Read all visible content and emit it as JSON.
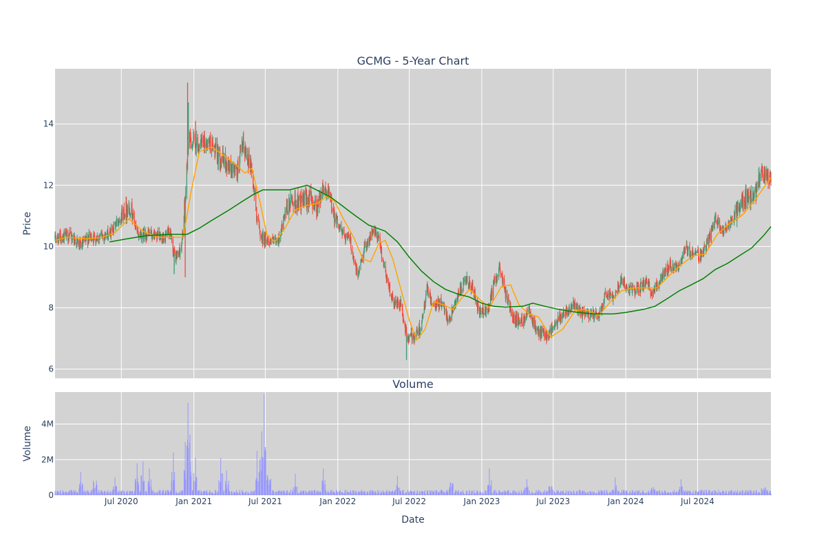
{
  "chart_data": [
    {
      "type": "candlestick",
      "title": "GCMG - 5-Year Chart",
      "xlabel": "",
      "ylabel": "Price",
      "x_range": [
        "2020-01-15",
        "2025-01-03"
      ],
      "ylim": [
        5.7,
        15.8
      ],
      "y_ticks": [
        6,
        8,
        10,
        12,
        14
      ],
      "grid": true,
      "colors": {
        "background": "#d3d3d3",
        "grid": "#ffffff",
        "increasing": "#3d9970",
        "decreasing": "#ff4136",
        "ma_short": "#ffa500",
        "ma_long": "#008000"
      },
      "price_path": [
        [
          "2020-01-15",
          10.25
        ],
        [
          "2020-02-10",
          10.35
        ],
        [
          "2020-03-01",
          10.3
        ],
        [
          "2020-03-20",
          10.0
        ],
        [
          "2020-04-10",
          10.3
        ],
        [
          "2020-05-01",
          10.3
        ],
        [
          "2020-06-01",
          10.4
        ],
        [
          "2020-06-20",
          10.8
        ],
        [
          "2020-07-10",
          11.2
        ],
        [
          "2020-07-25",
          11.3
        ],
        [
          "2020-08-10",
          10.4
        ],
        [
          "2020-09-10",
          10.4
        ],
        [
          "2020-10-10",
          10.3
        ],
        [
          "2020-11-01",
          10.4
        ],
        [
          "2020-11-15",
          9.6
        ],
        [
          "2020-12-01",
          10.0
        ],
        [
          "2020-12-10",
          11.5
        ],
        [
          "2020-12-18",
          13.5
        ],
        [
          "2021-01-10",
          13.3
        ],
        [
          "2021-02-10",
          13.4
        ],
        [
          "2021-03-01",
          13.0
        ],
        [
          "2021-04-01",
          12.6
        ],
        [
          "2021-04-20",
          12.4
        ],
        [
          "2021-05-05",
          13.3
        ],
        [
          "2021-05-25",
          12.7
        ],
        [
          "2021-06-10",
          11.0
        ],
        [
          "2021-06-20",
          10.3
        ],
        [
          "2021-07-10",
          10.2
        ],
        [
          "2021-08-01",
          10.1
        ],
        [
          "2021-08-20",
          11.0
        ],
        [
          "2021-09-05",
          11.5
        ],
        [
          "2021-10-01",
          11.4
        ],
        [
          "2021-10-20",
          11.6
        ],
        [
          "2021-11-10",
          11.3
        ],
        [
          "2021-11-25",
          12.0
        ],
        [
          "2021-12-10",
          11.6
        ],
        [
          "2021-12-25",
          11.0
        ],
        [
          "2022-01-10",
          10.5
        ],
        [
          "2022-02-01",
          10.2
        ],
        [
          "2022-02-20",
          9.0
        ],
        [
          "2022-03-10",
          10.0
        ],
        [
          "2022-04-01",
          10.5
        ],
        [
          "2022-04-15",
          10.2
        ],
        [
          "2022-05-01",
          9.2
        ],
        [
          "2022-05-20",
          8.2
        ],
        [
          "2022-06-10",
          8.1
        ],
        [
          "2022-06-25",
          7.0
        ],
        [
          "2022-07-15",
          7.1
        ],
        [
          "2022-08-01",
          7.4
        ],
        [
          "2022-08-15",
          8.6
        ],
        [
          "2022-09-01",
          8.0
        ],
        [
          "2022-09-20",
          8.2
        ],
        [
          "2022-10-10",
          7.6
        ],
        [
          "2022-10-25",
          8.2
        ],
        [
          "2022-11-10",
          8.6
        ],
        [
          "2022-11-25",
          8.9
        ],
        [
          "2022-12-10",
          8.6
        ],
        [
          "2022-12-25",
          7.8
        ],
        [
          "2023-01-15",
          7.9
        ],
        [
          "2023-02-01",
          8.8
        ],
        [
          "2023-02-15",
          9.3
        ],
        [
          "2023-03-05",
          8.3
        ],
        [
          "2023-03-25",
          7.6
        ],
        [
          "2023-04-15",
          7.6
        ],
        [
          "2023-05-01",
          8.0
        ],
        [
          "2023-05-20",
          7.2
        ],
        [
          "2023-06-15",
          7.1
        ],
        [
          "2023-07-10",
          7.5
        ],
        [
          "2023-08-01",
          7.9
        ],
        [
          "2023-08-20",
          8.1
        ],
        [
          "2023-09-10",
          7.8
        ],
        [
          "2023-10-01",
          7.8
        ],
        [
          "2023-10-25",
          7.7
        ],
        [
          "2023-11-10",
          8.5
        ],
        [
          "2023-12-01",
          8.4
        ],
        [
          "2023-12-20",
          8.9
        ],
        [
          "2024-01-10",
          8.6
        ],
        [
          "2024-02-01",
          8.6
        ],
        [
          "2024-02-20",
          8.8
        ],
        [
          "2024-03-10",
          8.5
        ],
        [
          "2024-04-01",
          9.0
        ],
        [
          "2024-04-20",
          9.4
        ],
        [
          "2024-05-10",
          9.3
        ],
        [
          "2024-06-01",
          9.9
        ],
        [
          "2024-06-20",
          9.8
        ],
        [
          "2024-07-10",
          9.7
        ],
        [
          "2024-08-01",
          10.3
        ],
        [
          "2024-08-15",
          10.9
        ],
        [
          "2024-09-01",
          10.5
        ],
        [
          "2024-09-25",
          10.8
        ],
        [
          "2024-10-15",
          11.3
        ],
        [
          "2024-11-01",
          11.6
        ],
        [
          "2024-11-20",
          11.5
        ],
        [
          "2024-12-05",
          12.3
        ],
        [
          "2024-12-20",
          12.3
        ],
        [
          "2025-01-03",
          12.2
        ]
      ],
      "ma_short": [
        [
          "2020-01-15",
          10.2
        ],
        [
          "2020-02-15",
          10.3
        ],
        [
          "2020-04-01",
          10.25
        ],
        [
          "2020-05-15",
          10.3
        ],
        [
          "2020-06-15",
          10.45
        ],
        [
          "2020-07-20",
          10.9
        ],
        [
          "2020-08-25",
          10.5
        ],
        [
          "2020-10-01",
          10.3
        ],
        [
          "2020-11-15",
          10.3
        ],
        [
          "2020-12-05",
          10.3
        ],
        [
          "2020-12-25",
          11.8
        ],
        [
          "2021-01-15",
          13.1
        ],
        [
          "2021-02-15",
          13.25
        ],
        [
          "2021-03-15",
          13.0
        ],
        [
          "2021-04-15",
          12.7
        ],
        [
          "2021-05-10",
          12.4
        ],
        [
          "2021-05-28",
          12.55
        ],
        [
          "2021-06-15",
          11.6
        ],
        [
          "2021-07-05",
          10.4
        ],
        [
          "2021-07-25",
          10.15
        ],
        [
          "2021-08-20",
          10.6
        ],
        [
          "2021-09-15",
          11.2
        ],
        [
          "2021-10-15",
          11.35
        ],
        [
          "2021-11-10",
          11.4
        ],
        [
          "2021-12-05",
          11.65
        ],
        [
          "2021-12-25",
          11.45
        ],
        [
          "2022-01-15",
          10.9
        ],
        [
          "2022-02-10",
          10.3
        ],
        [
          "2022-03-05",
          9.6
        ],
        [
          "2022-03-25",
          9.5
        ],
        [
          "2022-04-15",
          10.1
        ],
        [
          "2022-05-01",
          10.2
        ],
        [
          "2022-05-20",
          9.6
        ],
        [
          "2022-06-10",
          8.6
        ],
        [
          "2022-07-01",
          7.6
        ],
        [
          "2022-07-20",
          6.95
        ],
        [
          "2022-08-10",
          7.3
        ],
        [
          "2022-09-01",
          8.2
        ],
        [
          "2022-09-25",
          8.1
        ],
        [
          "2022-10-20",
          7.95
        ],
        [
          "2022-11-10",
          8.3
        ],
        [
          "2022-12-01",
          8.6
        ],
        [
          "2022-12-25",
          8.3
        ],
        [
          "2023-01-20",
          8.0
        ],
        [
          "2023-02-20",
          8.7
        ],
        [
          "2023-03-15",
          8.75
        ],
        [
          "2023-04-05",
          8.1
        ],
        [
          "2023-04-30",
          7.8
        ],
        [
          "2023-05-25",
          7.7
        ],
        [
          "2023-06-25",
          7.05
        ],
        [
          "2023-07-25",
          7.3
        ],
        [
          "2023-08-25",
          7.9
        ],
        [
          "2023-09-20",
          7.95
        ],
        [
          "2023-10-25",
          7.75
        ],
        [
          "2023-11-20",
          8.15
        ],
        [
          "2023-12-20",
          8.55
        ],
        [
          "2024-01-20",
          8.65
        ],
        [
          "2024-02-20",
          8.65
        ],
        [
          "2024-03-20",
          8.65
        ],
        [
          "2024-04-20",
          9.05
        ],
        [
          "2024-05-20",
          9.4
        ],
        [
          "2024-06-20",
          9.7
        ],
        [
          "2024-07-20",
          9.75
        ],
        [
          "2024-08-20",
          10.4
        ],
        [
          "2024-09-20",
          10.75
        ],
        [
          "2024-10-20",
          11.0
        ],
        [
          "2024-11-20",
          11.45
        ],
        [
          "2024-12-20",
          12.0
        ],
        [
          "2025-01-03",
          12.25
        ]
      ],
      "ma_long": [
        [
          "2020-06-01",
          10.15
        ],
        [
          "2020-07-15",
          10.25
        ],
        [
          "2020-09-01",
          10.35
        ],
        [
          "2020-11-01",
          10.4
        ],
        [
          "2020-12-15",
          10.4
        ],
        [
          "2021-01-15",
          10.6
        ],
        [
          "2021-02-15",
          10.85
        ],
        [
          "2021-04-01",
          11.2
        ],
        [
          "2021-05-01",
          11.45
        ],
        [
          "2021-06-01",
          11.7
        ],
        [
          "2021-06-25",
          11.85
        ],
        [
          "2021-08-01",
          11.85
        ],
        [
          "2021-09-01",
          11.85
        ],
        [
          "2021-10-01",
          11.95
        ],
        [
          "2021-10-15",
          12.0
        ],
        [
          "2021-11-15",
          11.8
        ],
        [
          "2021-12-15",
          11.6
        ],
        [
          "2022-01-15",
          11.3
        ],
        [
          "2022-02-15",
          11.0
        ],
        [
          "2022-03-20",
          10.7
        ],
        [
          "2022-05-01",
          10.5
        ],
        [
          "2022-06-01",
          10.15
        ],
        [
          "2022-07-01",
          9.65
        ],
        [
          "2022-08-01",
          9.2
        ],
        [
          "2022-09-01",
          8.85
        ],
        [
          "2022-10-01",
          8.6
        ],
        [
          "2022-11-01",
          8.45
        ],
        [
          "2022-12-01",
          8.35
        ],
        [
          "2023-01-01",
          8.15
        ],
        [
          "2023-02-01",
          8.05
        ],
        [
          "2023-03-01",
          8.02
        ],
        [
          "2023-04-15",
          8.05
        ],
        [
          "2023-05-10",
          8.15
        ],
        [
          "2023-06-10",
          8.05
        ],
        [
          "2023-07-15",
          7.95
        ],
        [
          "2023-09-01",
          7.85
        ],
        [
          "2023-10-15",
          7.8
        ],
        [
          "2023-12-01",
          7.8
        ],
        [
          "2024-01-01",
          7.85
        ],
        [
          "2024-02-15",
          7.95
        ],
        [
          "2024-03-15",
          8.05
        ],
        [
          "2024-04-15",
          8.3
        ],
        [
          "2024-05-15",
          8.55
        ],
        [
          "2024-06-15",
          8.75
        ],
        [
          "2024-07-15",
          8.95
        ],
        [
          "2024-08-15",
          9.25
        ],
        [
          "2024-09-15",
          9.45
        ],
        [
          "2024-10-15",
          9.7
        ],
        [
          "2024-11-15",
          9.95
        ],
        [
          "2024-12-15",
          10.35
        ],
        [
          "2025-01-03",
          10.65
        ]
      ]
    },
    {
      "type": "bar",
      "title": "Volume",
      "xlabel": "Date",
      "ylabel": "Volume",
      "x_range": [
        "2020-01-15",
        "2025-01-03"
      ],
      "ylim": [
        0,
        5.8
      ],
      "y_ticks": [
        0,
        2,
        4
      ],
      "y_tick_labels": [
        "0",
        "2M",
        "4M"
      ],
      "x_ticks": [
        "2020-07-01",
        "2021-01-01",
        "2021-07-01",
        "2022-01-01",
        "2022-07-01",
        "2023-01-01",
        "2023-07-01",
        "2024-01-01",
        "2024-07-01"
      ],
      "x_tick_labels": [
        "Jul 2020",
        "Jan 2021",
        "Jul 2021",
        "Jan 2022",
        "Jul 2022",
        "Jan 2023",
        "Jul 2023",
        "Jan 2024",
        "Jul 2024"
      ],
      "grid": true,
      "colors": {
        "background": "#d3d3d3",
        "grid": "#ffffff",
        "bars": "#9696ff"
      },
      "base_volume_millions": 0.2,
      "spikes": [
        [
          "2020-03-20",
          1.3
        ],
        [
          "2020-04-25",
          1.4
        ],
        [
          "2020-06-15",
          1.0
        ],
        [
          "2020-08-10",
          1.8
        ],
        [
          "2020-08-25",
          1.9
        ],
        [
          "2020-09-10",
          1.5
        ],
        [
          "2020-11-10",
          2.4
        ],
        [
          "2020-12-10",
          3.0
        ],
        [
          "2020-12-17",
          5.2
        ],
        [
          "2020-12-22",
          3.4
        ],
        [
          "2021-01-05",
          2.1
        ],
        [
          "2021-03-10",
          2.1
        ],
        [
          "2021-03-25",
          1.4
        ],
        [
          "2021-06-10",
          2.5
        ],
        [
          "2021-06-22",
          3.6
        ],
        [
          "2021-06-28",
          5.7
        ],
        [
          "2021-07-10",
          2.0
        ],
        [
          "2021-09-15",
          1.2
        ],
        [
          "2021-11-25",
          1.5
        ],
        [
          "2022-06-01",
          1.1
        ],
        [
          "2022-10-15",
          1.2
        ],
        [
          "2023-01-20",
          1.5
        ],
        [
          "2023-04-25",
          0.9
        ],
        [
          "2023-06-25",
          0.9
        ],
        [
          "2023-12-05",
          1.0
        ],
        [
          "2024-03-10",
          0.8
        ],
        [
          "2024-05-20",
          0.9
        ],
        [
          "2024-12-15",
          0.8
        ]
      ]
    }
  ]
}
